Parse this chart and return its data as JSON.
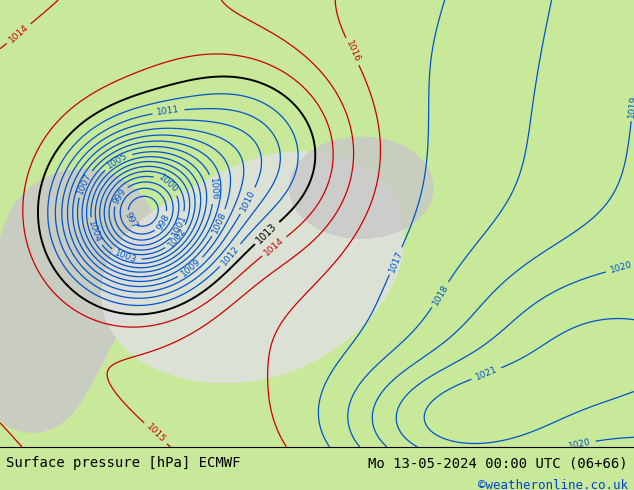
{
  "title_left": "Surface pressure [hPa] ECMWF",
  "title_right": "Mo 13-05-2024 00:00 UTC (06+66)",
  "credit": "©weatheronline.co.uk",
  "bg_color": "#c8e89a",
  "bottom_bar_color": "#e8e8e8",
  "title_fontsize": 10,
  "credit_fontsize": 9,
  "credit_color": "#0044cc",
  "blue_color": "#0055cc",
  "red_color": "#cc0000",
  "black_color": "#000000",
  "gray_terrain_color": "#c8c8c8",
  "white_sea_color": "#e0e0e0"
}
